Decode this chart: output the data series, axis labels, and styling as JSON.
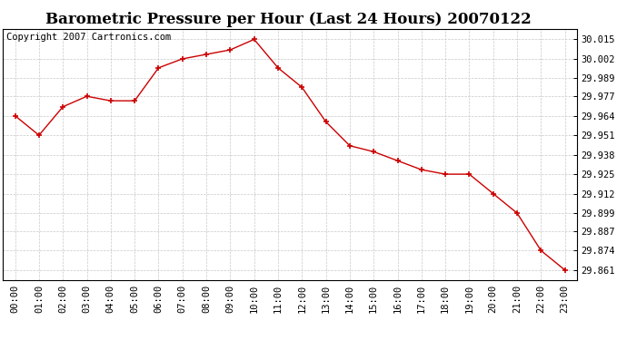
{
  "title": "Barometric Pressure per Hour (Last 24 Hours) 20070122",
  "copyright": "Copyright 2007 Cartronics.com",
  "hours": [
    "00:00",
    "01:00",
    "02:00",
    "03:00",
    "04:00",
    "05:00",
    "06:00",
    "07:00",
    "08:00",
    "09:00",
    "10:00",
    "11:00",
    "12:00",
    "13:00",
    "14:00",
    "15:00",
    "16:00",
    "17:00",
    "18:00",
    "19:00",
    "20:00",
    "21:00",
    "22:00",
    "23:00"
  ],
  "values": [
    29.964,
    29.951,
    29.97,
    29.977,
    29.974,
    29.974,
    29.996,
    30.002,
    30.005,
    30.008,
    30.015,
    29.996,
    29.983,
    29.96,
    29.944,
    29.94,
    29.934,
    29.928,
    29.925,
    29.925,
    29.912,
    29.899,
    29.874,
    29.861
  ],
  "yticks": [
    30.015,
    30.002,
    29.989,
    29.977,
    29.964,
    29.951,
    29.938,
    29.925,
    29.912,
    29.899,
    29.887,
    29.874,
    29.861
  ],
  "line_color": "#cc0000",
  "marker_color": "#cc0000",
  "background_color": "#ffffff",
  "grid_color": "#c8c8c8",
  "title_fontsize": 12,
  "copyright_fontsize": 7.5,
  "tick_fontsize": 7.5,
  "ylim_min": 29.854,
  "ylim_max": 30.022
}
